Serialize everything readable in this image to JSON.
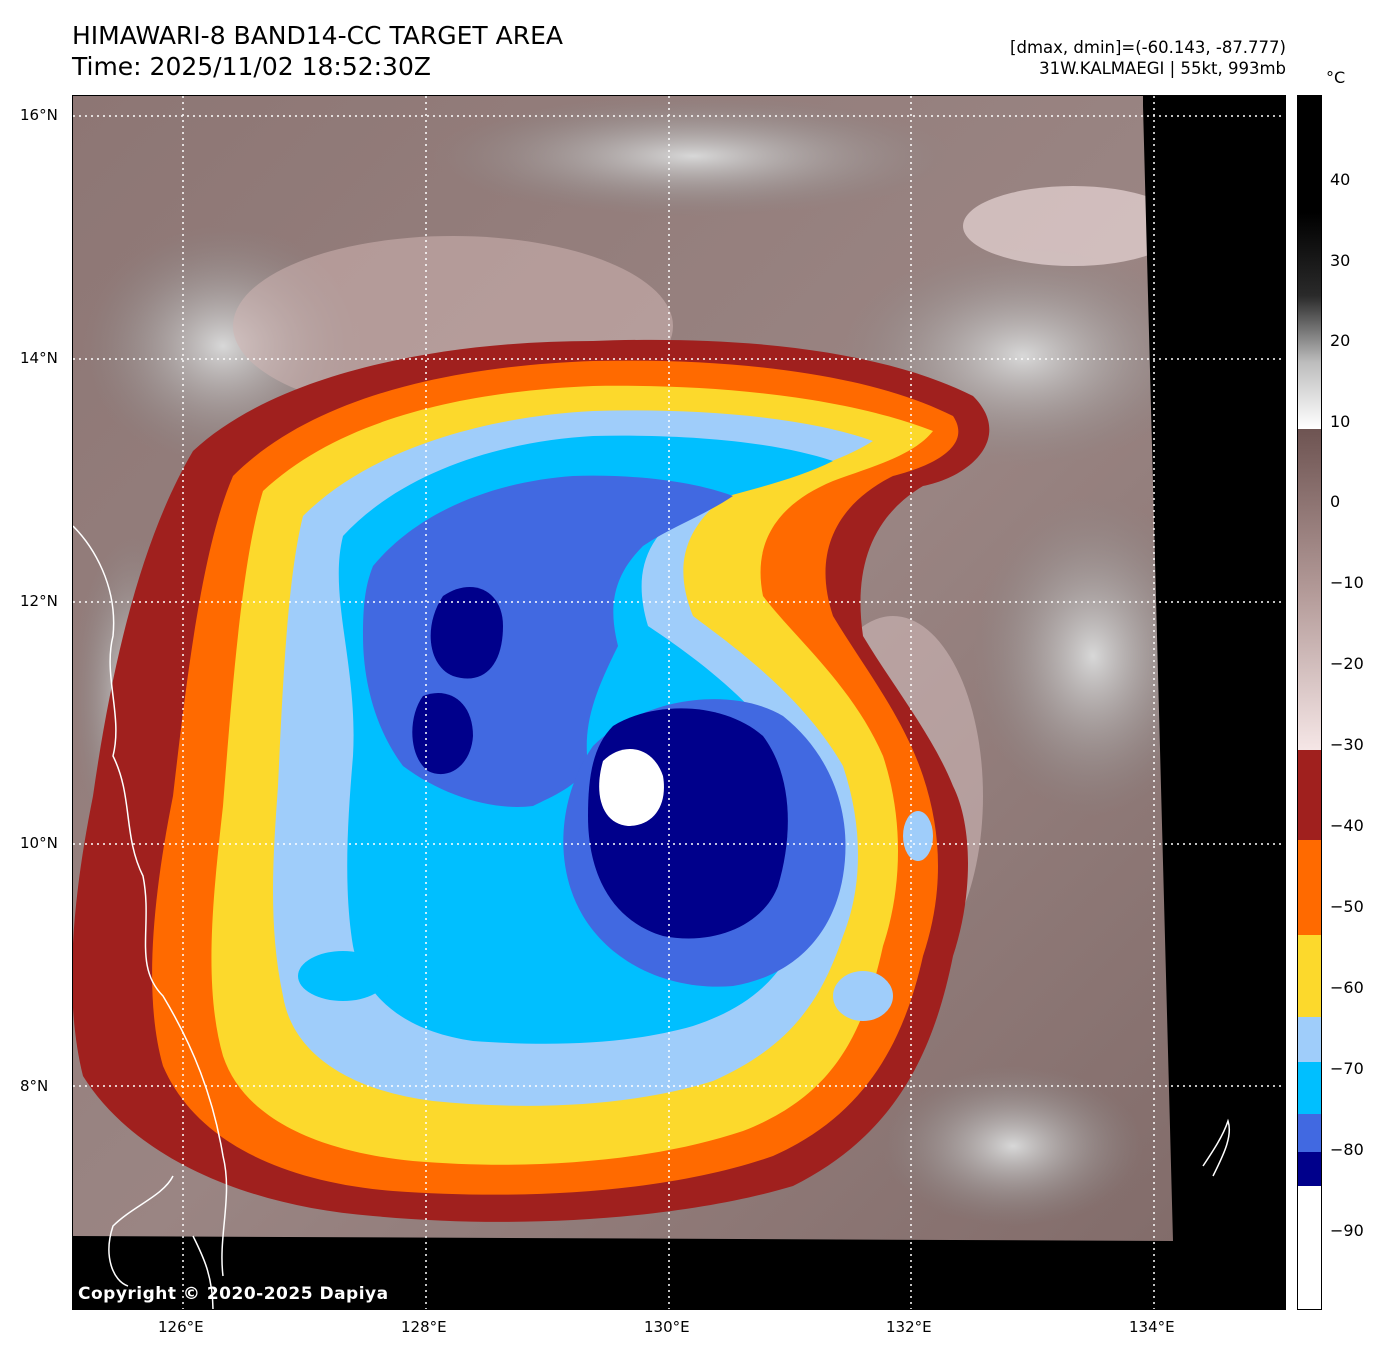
{
  "header": {
    "title_line1": "HIMAWARI-8 BAND14-CC TARGET AREA",
    "title_line2": "Time: 2025/11/02 18:52:30Z",
    "info_line1": "[dmax, dmin]=(-60.143, -87.777)",
    "info_line2": "31W.KALMAEGI | 55kt, 993mb"
  },
  "map": {
    "lat_labels": [
      "16°N",
      "14°N",
      "12°N",
      "10°N",
      "8°N"
    ],
    "lon_labels": [
      "126°E",
      "128°E",
      "130°E",
      "132°E",
      "134°E"
    ],
    "copyright": "Copyright © 2020-2025 Dapiya",
    "colors": {
      "no_data": "#000000",
      "cloud_gray": "#a9a9a9",
      "warm_brown": "#8a6a66",
      "cloud_pink": "#dcc0c0",
      "band_neg40": "#a0201e",
      "band_neg50": "#ff6a00",
      "band_neg60": "#fcd92c",
      "band_neg70": "#9fcdfa",
      "band_neg75": "#00bfff",
      "band_neg80": "#4169e1",
      "band_neg85": "#00008b",
      "band_neg90": "#ffffff",
      "coastline": "#ffffff",
      "gridline": "#ffffff"
    }
  },
  "colorbar": {
    "unit": "°C",
    "labels": [
      "40",
      "30",
      "20",
      "10",
      "0",
      "−10",
      "−20",
      "−30",
      "−40",
      "−50",
      "−60",
      "−70",
      "−80",
      "−90"
    ]
  }
}
